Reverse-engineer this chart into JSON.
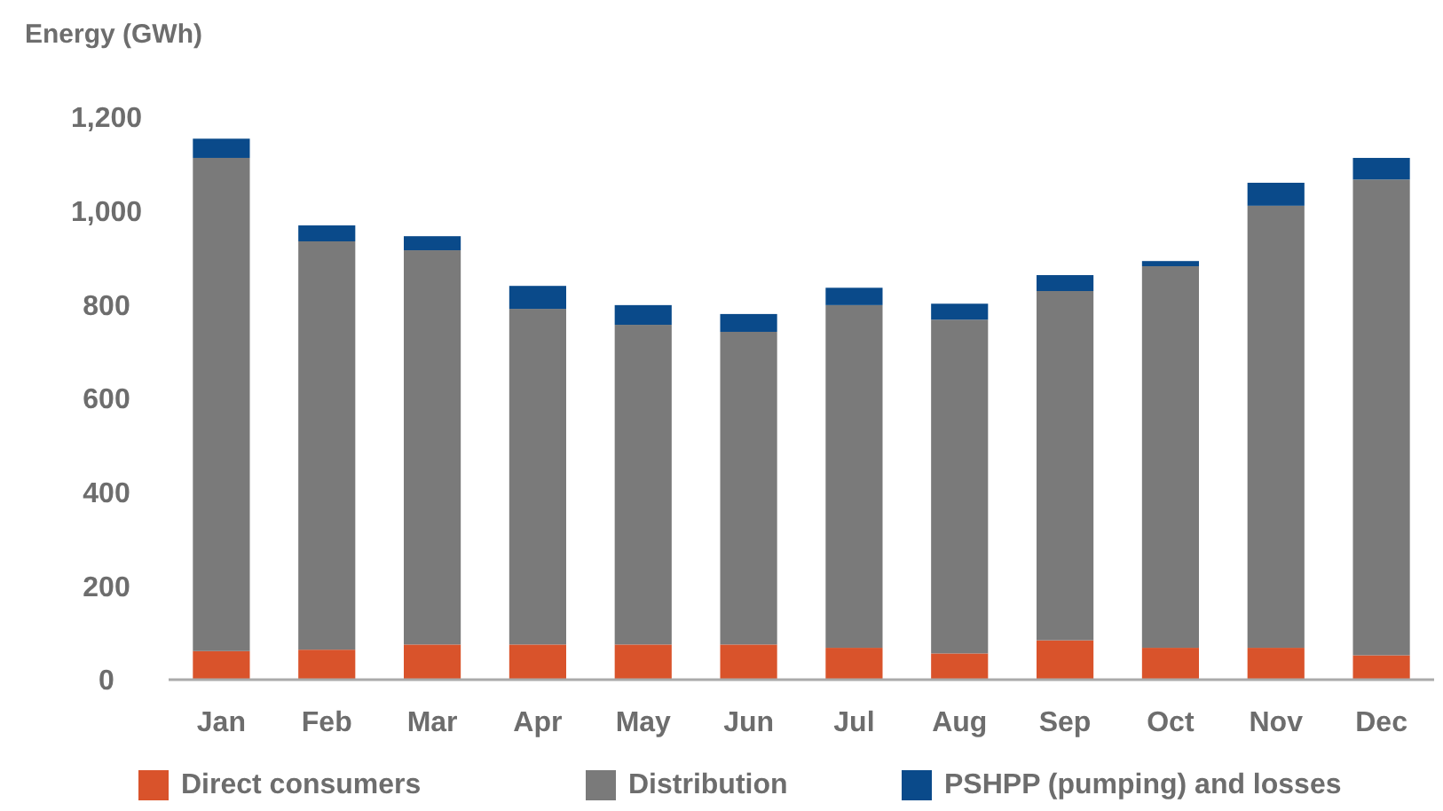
{
  "chart_data": {
    "type": "bar",
    "stacked": true,
    "ylabel": "Energy (GWh)",
    "categories": [
      "Jan",
      "Feb",
      "Mar",
      "Apr",
      "May",
      "Jun",
      "Jul",
      "Aug",
      "Sep",
      "Oct",
      "Nov",
      "Dec"
    ],
    "series": [
      {
        "name": "Direct consumers",
        "color": "#d9532b",
        "values": [
          61,
          64,
          75,
          75,
          75,
          75,
          68,
          56,
          84,
          68,
          68,
          52
        ]
      },
      {
        "name": "Distribution",
        "color": "#7a7a7a",
        "values": [
          1052,
          871,
          841,
          716,
          682,
          667,
          731,
          712,
          745,
          814,
          943,
          1015
        ]
      },
      {
        "name": "PSHPP (pumping) and losses",
        "color": "#0a4a8a",
        "values": [
          41,
          34,
          30,
          49,
          42,
          38,
          37,
          34,
          34,
          11,
          49,
          46
        ]
      }
    ],
    "ylim": [
      0,
      1200
    ],
    "yticks": [
      0,
      200,
      400,
      600,
      800,
      {
        "value": 1000,
        "label": "1,000"
      },
      {
        "value": 1200,
        "label": "1,200"
      }
    ],
    "grid": false,
    "legend": "bottom"
  }
}
